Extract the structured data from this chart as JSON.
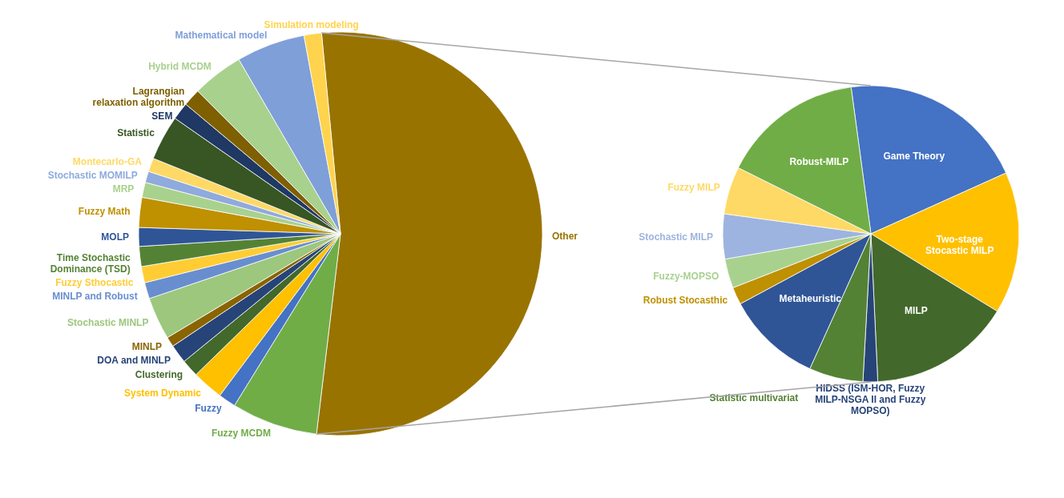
{
  "chart_data": [
    {
      "type": "pie",
      "categories": [
        "Other",
        "Fuzzy MCDM",
        "Fuzzy",
        "System Dynamic",
        "Clustering",
        "DOA and MINLP",
        "MINLP",
        "Stochastic MINLP",
        "MINLP and Robust",
        "Fuzzy Sthocastic",
        "Time Stochastic Dominance (TSD)",
        "MOLP",
        "Fuzzy Math",
        "MRP",
        "Stochastic MOMILP",
        "Montecarlo-GA",
        "Statistic",
        "SEM",
        "Lagrangian relaxation algorithm",
        "Hybrid MCDM",
        "Mathematical model",
        "Simulation modeling"
      ],
      "values": [
        53.4,
        6.9,
        1.4,
        2.5,
        1.4,
        1.5,
        0.8,
        3.4,
        1.3,
        1.3,
        1.6,
        1.5,
        2.4,
        1.2,
        0.9,
        1.1,
        3.6,
        1.4,
        1.4,
        4.1,
        5.5,
        1.4
      ],
      "colors": [
        "#997300",
        "#70ad47",
        "#4472c4",
        "#ffc000",
        "#43682b",
        "#264478",
        "#8a6400",
        "#9dc77d",
        "#698ed0",
        "#ffcd33",
        "#548235",
        "#2f5597",
        "#bf9000",
        "#a9d18e",
        "#8faadc",
        "#ffd966",
        "#375623",
        "#1f3864",
        "#7f6000",
        "#a9d18e",
        "#7f9fd8",
        "#ffd34d"
      ]
    },
    {
      "type": "pie",
      "categories": [
        "Game Theory",
        "Two-stage Stocastic MILP",
        "MILP",
        "HIDSS (ISM-HOR, Fuzzy MILP-NSGA II and Fuzzy MOPSO)",
        "Statistic multivariat",
        "Metaheuristic",
        "Robust Stocasthic",
        "Fuzzy-MOPSO",
        "Stochastic MILP",
        "Fuzzy MILP",
        "Robust-MILP"
      ],
      "values": [
        20.4,
        15.5,
        15.5,
        1.6,
        5.9,
        10.4,
        1.9,
        3.2,
        4.9,
        5.2,
        15.5
      ],
      "colors": [
        "#4472c4",
        "#ffc000",
        "#43682b",
        "#264478",
        "#548235",
        "#2f5597",
        "#bf9000",
        "#a9d18e",
        "#9db4e0",
        "#ffd966",
        "#70ad47"
      ]
    }
  ]
}
